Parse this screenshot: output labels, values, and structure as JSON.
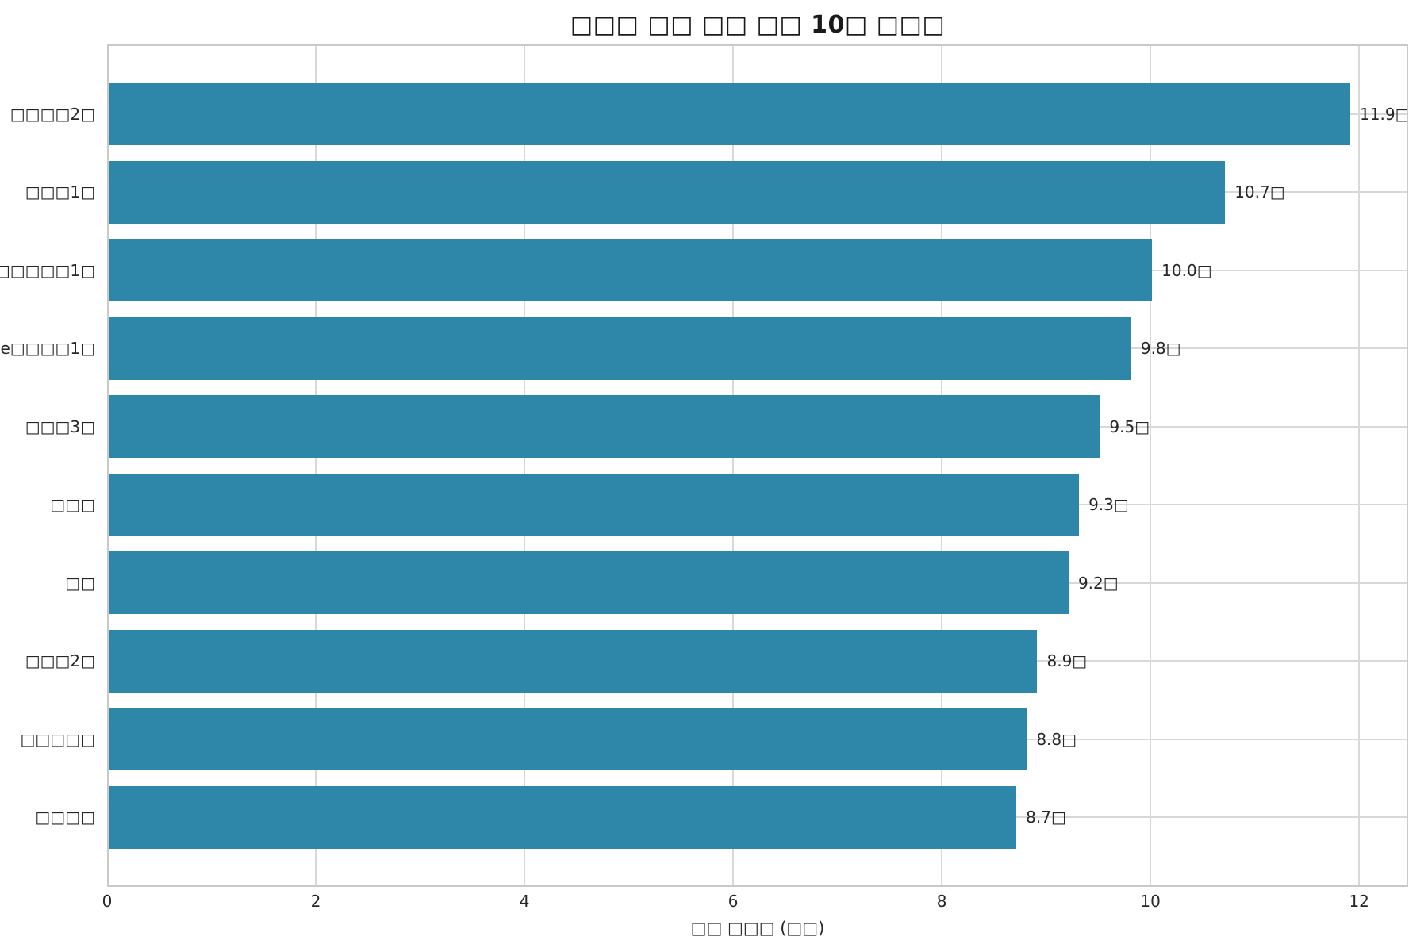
{
  "chart_data": {
    "type": "bar",
    "orientation": "horizontal",
    "title": "□□□ □□ □□ □□ 10□ □□□",
    "xlabel": "□□ □□□ (□□)",
    "ylabel": "",
    "categories": [
      "□□□□2□",
      "□□□1□",
      "□□□□□1□",
      "e□□□□1□",
      "□□□3□",
      "□□□",
      "□□",
      "□□□2□",
      "□□□□□",
      "□□□□"
    ],
    "values": [
      11.9,
      10.7,
      10.0,
      9.8,
      9.5,
      9.3,
      9.2,
      8.9,
      8.8,
      8.7
    ],
    "value_labels": [
      "11.9□",
      "10.7□",
      "10.0□",
      "9.8□",
      "9.5□",
      "9.3□",
      "9.2□",
      "8.9□",
      "8.8□",
      "8.7□"
    ],
    "x_ticks": [
      0,
      2,
      4,
      6,
      8,
      10,
      12
    ],
    "xlim": [
      0,
      12.47
    ],
    "grid": true,
    "legend": "none",
    "bar_color": "#2e86a9",
    "grid_color": "#d8d8d8",
    "border_color": "#c9c9c9",
    "text_color": "#262626"
  }
}
